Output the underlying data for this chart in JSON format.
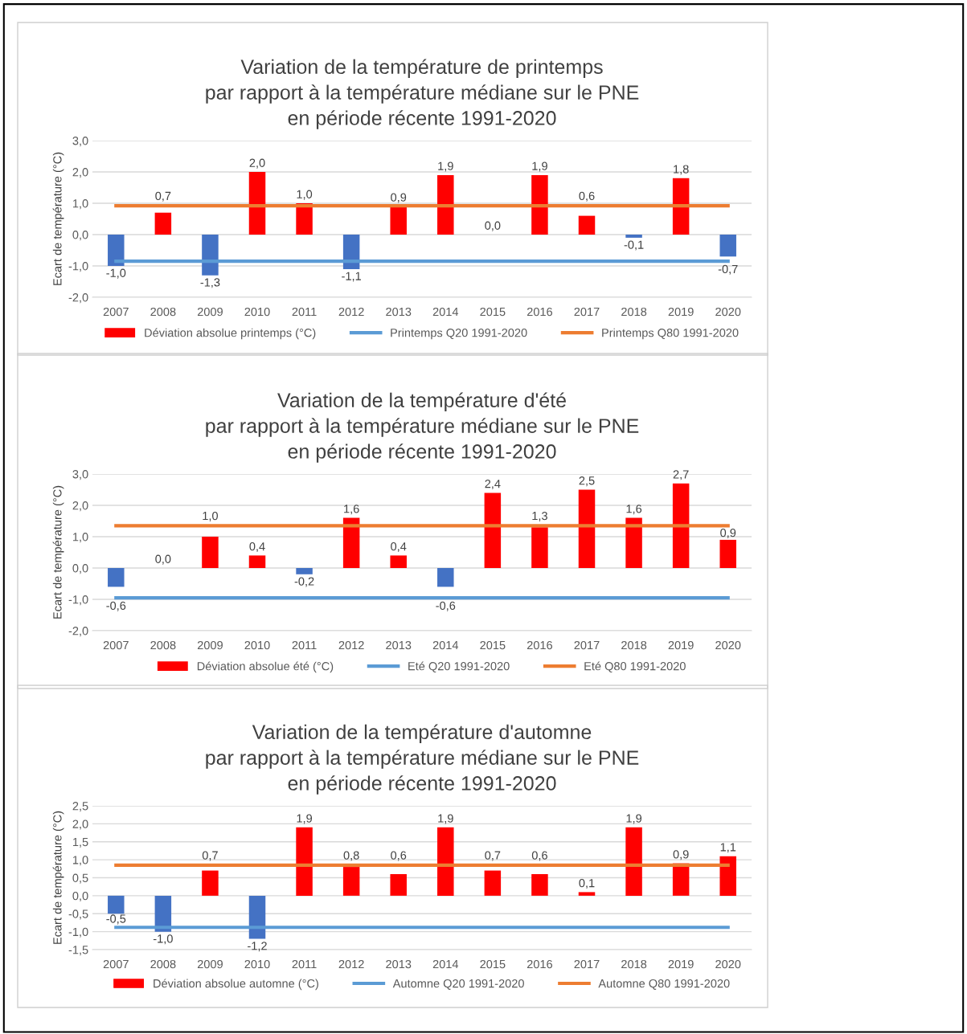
{
  "chart_data": [
    {
      "type": "bar",
      "title": "Variation de la température de printemps\npar rapport à la température médiane sur le PNE\nen période récente 1991-2020",
      "ylabel": "Ecart de température (°C)",
      "categories": [
        "2007",
        "2008",
        "2009",
        "2010",
        "2011",
        "2012",
        "2013",
        "2014",
        "2015",
        "2016",
        "2017",
        "2018",
        "2019",
        "2020"
      ],
      "series": [
        {
          "name": "Déviation absolue printemps (°C)",
          "color": "#ff0000",
          "values": [
            -1.0,
            0.7,
            -1.3,
            2.0,
            1.0,
            -1.1,
            0.9,
            1.9,
            0.0,
            1.9,
            0.6,
            -0.1,
            1.8,
            -0.7
          ],
          "colors": [
            "#4472c4",
            "#ff0000",
            "#4472c4",
            "#ff0000",
            "#ff0000",
            "#4472c4",
            "#ff0000",
            "#ff0000",
            "#ff0000",
            "#ff0000",
            "#ff0000",
            "#4472c4",
            "#ff0000",
            "#4472c4"
          ],
          "value_labels": [
            "-1,0",
            "0,7",
            "-1,3",
            "2,0",
            "1,0",
            "-1,1",
            "0,9",
            "1,9",
            "0,0",
            "1,9",
            "0,6",
            "-0,1",
            "1,8",
            "-0,7"
          ]
        },
        {
          "name": "Printemps Q20 1991-2020",
          "type": "line",
          "color": "#5b9bd5",
          "values": [
            -0.85,
            -0.85,
            -0.85,
            -0.85,
            -0.85,
            -0.85,
            -0.85,
            -0.85,
            -0.85,
            -0.85,
            -0.85,
            -0.85,
            -0.85,
            -0.85
          ]
        },
        {
          "name": "Printemps Q80 1991-2020",
          "type": "line",
          "color": "#ed7d31",
          "values": [
            0.92,
            0.92,
            0.92,
            0.92,
            0.92,
            0.92,
            0.92,
            0.92,
            0.92,
            0.92,
            0.92,
            0.92,
            0.92,
            0.92
          ]
        }
      ],
      "ylim": [
        -2.0,
        3.0
      ],
      "yticks": [
        {
          "value": -2.0,
          "label": "-2,0"
        },
        {
          "value": -1.0,
          "label": "-1,0"
        },
        {
          "value": 0.0,
          "label": "0,0"
        },
        {
          "value": 1.0,
          "label": "1,0"
        },
        {
          "value": 2.0,
          "label": "2,0"
        },
        {
          "value": 3.0,
          "label": "3,0"
        }
      ],
      "grid": "y",
      "legend": "bottom"
    },
    {
      "type": "bar",
      "title": "Variation de la température d'été\npar rapport à la température médiane sur le PNE\nen période récente 1991-2020",
      "ylabel": "Ecart de température (°C)",
      "categories": [
        "2007",
        "2008",
        "2009",
        "2010",
        "2011",
        "2012",
        "2013",
        "2014",
        "2015",
        "2016",
        "2017",
        "2018",
        "2019",
        "2020"
      ],
      "series": [
        {
          "name": "Déviation absolue été (°C)",
          "color": "#ff0000",
          "values": [
            -0.6,
            0.0,
            1.0,
            0.4,
            -0.2,
            1.6,
            0.4,
            -0.6,
            2.4,
            1.3,
            2.5,
            1.6,
            2.7,
            0.9
          ],
          "colors": [
            "#4472c4",
            "#4472c4",
            "#ff0000",
            "#ff0000",
            "#4472c4",
            "#ff0000",
            "#ff0000",
            "#4472c4",
            "#ff0000",
            "#ff0000",
            "#ff0000",
            "#ff0000",
            "#ff0000",
            "#ff0000"
          ],
          "value_labels": [
            "-0,6",
            "0,0",
            "1,0",
            "0,4",
            "-0,2",
            "1,6",
            "0,4",
            "-0,6",
            "2,4",
            "1,3",
            "2,5",
            "1,6",
            "2,7",
            "0,9"
          ]
        },
        {
          "name": "Eté Q20 1991-2020",
          "type": "line",
          "color": "#5b9bd5",
          "values": [
            -0.95,
            -0.95,
            -0.95,
            -0.95,
            -0.95,
            -0.95,
            -0.95,
            -0.95,
            -0.95,
            -0.95,
            -0.95,
            -0.95,
            -0.95,
            -0.95
          ]
        },
        {
          "name": "Eté Q80 1991-2020",
          "type": "line",
          "color": "#ed7d31",
          "values": [
            1.35,
            1.35,
            1.35,
            1.35,
            1.35,
            1.35,
            1.35,
            1.35,
            1.35,
            1.35,
            1.35,
            1.35,
            1.35,
            1.35
          ]
        }
      ],
      "ylim": [
        -2.0,
        3.0
      ],
      "yticks": [
        {
          "value": -2.0,
          "label": "-2,0"
        },
        {
          "value": -1.0,
          "label": "-1,0"
        },
        {
          "value": 0.0,
          "label": "0,0"
        },
        {
          "value": 1.0,
          "label": "1,0"
        },
        {
          "value": 2.0,
          "label": "2,0"
        },
        {
          "value": 3.0,
          "label": "3,0"
        }
      ],
      "grid": "y",
      "legend": "bottom"
    },
    {
      "type": "bar",
      "title": "Variation de la température d'automne\npar rapport à la température médiane sur le PNE\nen période récente 1991-2020",
      "ylabel": "Ecart de température (°C)",
      "categories": [
        "2007",
        "2008",
        "2009",
        "2010",
        "2011",
        "2012",
        "2013",
        "2014",
        "2015",
        "2016",
        "2017",
        "2018",
        "2019",
        "2020"
      ],
      "series": [
        {
          "name": "Déviation absolue automne (°C)",
          "color": "#ff0000",
          "values": [
            -0.5,
            -1.0,
            0.7,
            -1.2,
            1.9,
            0.8,
            0.6,
            1.9,
            0.7,
            0.6,
            0.1,
            1.9,
            0.9,
            1.1
          ],
          "colors": [
            "#4472c4",
            "#4472c4",
            "#ff0000",
            "#4472c4",
            "#ff0000",
            "#ff0000",
            "#ff0000",
            "#ff0000",
            "#ff0000",
            "#ff0000",
            "#ff0000",
            "#ff0000",
            "#ff0000",
            "#ff0000"
          ],
          "value_labels": [
            "-0,5",
            "-1,0",
            "0,7",
            "-1,2",
            "1,9",
            "0,8",
            "0,6",
            "1,9",
            "0,7",
            "0,6",
            "0,1",
            "1,9",
            "0,9",
            "1,1"
          ]
        },
        {
          "name": "Automne Q20 1991-2020",
          "type": "line",
          "color": "#5b9bd5",
          "values": [
            -0.88,
            -0.88,
            -0.88,
            -0.88,
            -0.88,
            -0.88,
            -0.88,
            -0.88,
            -0.88,
            -0.88,
            -0.88,
            -0.88,
            -0.88,
            -0.88
          ]
        },
        {
          "name": "Automne Q80 1991-2020",
          "type": "line",
          "color": "#ed7d31",
          "values": [
            0.85,
            0.85,
            0.85,
            0.85,
            0.85,
            0.85,
            0.85,
            0.85,
            0.85,
            0.85,
            0.85,
            0.85,
            0.85,
            0.85
          ]
        }
      ],
      "ylim": [
        -1.5,
        2.5
      ],
      "yticks": [
        {
          "value": -1.5,
          "label": "-1,5"
        },
        {
          "value": -1.0,
          "label": "-1,0"
        },
        {
          "value": -0.5,
          "label": "-0,5"
        },
        {
          "value": 0.0,
          "label": "0,0"
        },
        {
          "value": 0.5,
          "label": "0,5"
        },
        {
          "value": 1.0,
          "label": "1,0"
        },
        {
          "value": 1.5,
          "label": "1,5"
        },
        {
          "value": 2.0,
          "label": "2,0"
        },
        {
          "value": 2.5,
          "label": "2,5"
        }
      ],
      "grid": "y",
      "legend": "bottom"
    }
  ]
}
